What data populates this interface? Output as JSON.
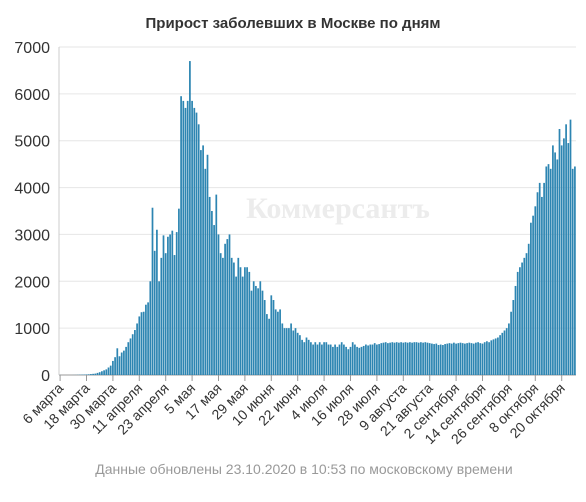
{
  "chart_data": {
    "type": "bar",
    "title": "Прирост заболевших в Москве по дням",
    "xlabel": "",
    "ylabel": "",
    "ylim": [
      0,
      7000
    ],
    "yticks": [
      0,
      1000,
      2000,
      3000,
      4000,
      5000,
      6000,
      7000
    ],
    "grid": true,
    "color": "#2d85b2",
    "x_tick_labels": [
      "6 марта",
      "18 марта",
      "30 марта",
      "11 апреля",
      "23 апреля",
      "5 мая",
      "17 мая",
      "29 мая",
      "10 июня",
      "22 июня",
      "4 июля",
      "16 июля",
      "28 июля",
      "9 августа",
      "21 августа",
      "2 сентября",
      "14 сентября",
      "26 сентября",
      "8 октября",
      "20 октября"
    ],
    "x_tick_indices": [
      0,
      12,
      24,
      36,
      48,
      60,
      72,
      84,
      96,
      108,
      120,
      132,
      144,
      156,
      168,
      180,
      192,
      204,
      216,
      228
    ],
    "categories_note": "daily values from 6 марта to 23 октября",
    "values": [
      1,
      0,
      0,
      0,
      0,
      0,
      1,
      2,
      4,
      6,
      8,
      10,
      12,
      15,
      20,
      25,
      30,
      45,
      60,
      80,
      100,
      120,
      160,
      200,
      300,
      380,
      570,
      400,
      480,
      520,
      600,
      700,
      780,
      870,
      960,
      1100,
      1250,
      1340,
      1350,
      1500,
      1550,
      2000,
      3570,
      2650,
      3100,
      2000,
      2500,
      2980,
      2600,
      2950,
      3000,
      3080,
      2560,
      3050,
      3550,
      5950,
      5850,
      5700,
      5850,
      6700,
      5850,
      5700,
      5600,
      5350,
      4800,
      4900,
      4400,
      4700,
      3800,
      3500,
      3200,
      3850,
      3000,
      2600,
      2500,
      2800,
      2900,
      3000,
      2500,
      2400,
      2100,
      2500,
      2300,
      2100,
      2300,
      2300,
      2200,
      1800,
      2000,
      1900,
      1850,
      2000,
      1800,
      1600,
      1300,
      1200,
      1700,
      1600,
      1400,
      1350,
      1400,
      1100,
      1000,
      1000,
      1000,
      1100,
      950,
      1000,
      900,
      850,
      750,
      700,
      800,
      750,
      700,
      650,
      700,
      650,
      700,
      650,
      700,
      700,
      650,
      650,
      600,
      650,
      600,
      650,
      700,
      650,
      600,
      550,
      600,
      700,
      650,
      600,
      580,
      600,
      620,
      650,
      630,
      650,
      650,
      680,
      650,
      660,
      680,
      690,
      700,
      680,
      690,
      700,
      690,
      700,
      690,
      700,
      690,
      700,
      690,
      700,
      690,
      700,
      700,
      690,
      700,
      690,
      700,
      690,
      680,
      670,
      660,
      670,
      640,
      650,
      640,
      660,
      670,
      680,
      670,
      690,
      670,
      680,
      690,
      680,
      670,
      680,
      690,
      680,
      670,
      690,
      700,
      680,
      670,
      700,
      720,
      700,
      740,
      760,
      780,
      800,
      850,
      900,
      950,
      1000,
      1100,
      1350,
      1600,
      1900,
      2200,
      2300,
      2400,
      2500,
      2600,
      2800,
      3250,
      3400,
      3600,
      3900,
      4100,
      3800,
      4100,
      4450,
      4500,
      4400,
      4900,
      4750,
      4600,
      5250,
      4900,
      5050,
      5350,
      4950,
      5450,
      4400,
      4450
    ]
  },
  "watermark_text": "Коммерсантъ",
  "footer_text": "Данные обновлены 23.10.2020 в 10:53 по московскому времени"
}
